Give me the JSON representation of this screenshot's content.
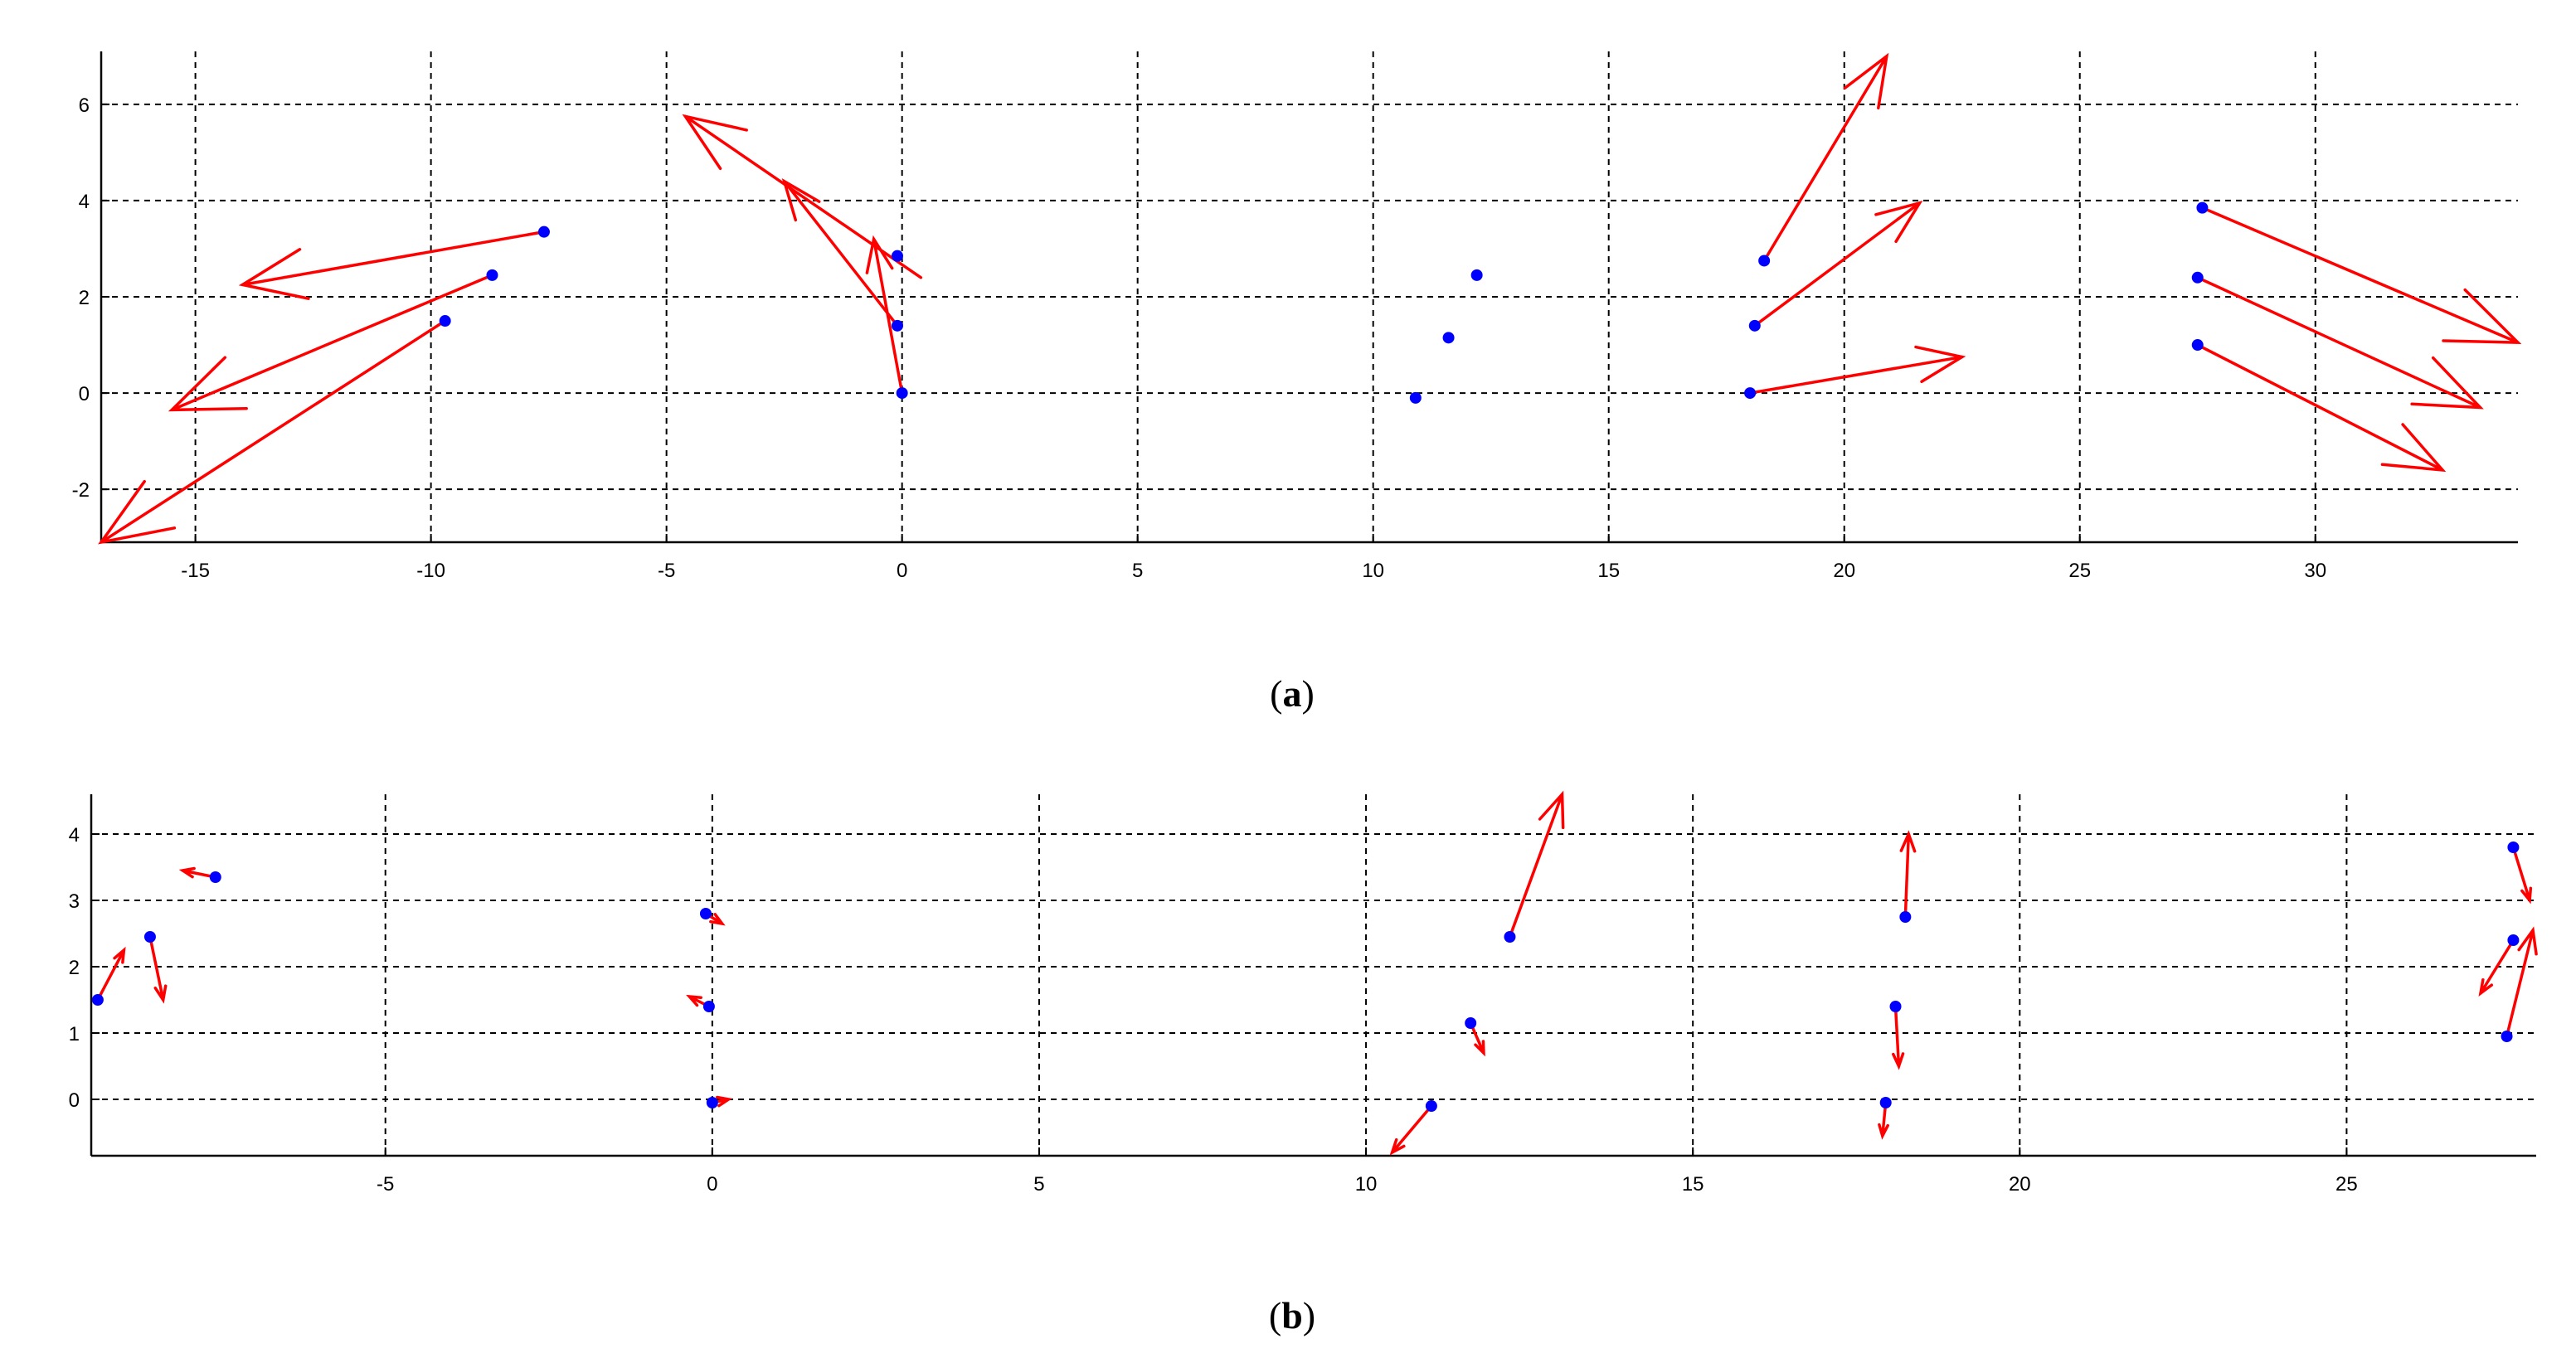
{
  "colors": {
    "arrow": "#ff0000",
    "point": "#0000ff",
    "axis": "#000000",
    "grid": "#000000",
    "background": "#ffffff"
  },
  "chart_data": [
    {
      "type": "scatter",
      "caption": {
        "open": "(",
        "letter": "a",
        "close": ")"
      },
      "title": "",
      "xlabel": "",
      "ylabel": "",
      "xlim": [
        -17,
        34.3
      ],
      "ylim": [
        -3.1,
        7.1
      ],
      "xticks": [
        -15,
        -10,
        -5,
        0,
        5,
        10,
        15,
        20,
        25,
        30
      ],
      "yticks": [
        -2,
        0,
        2,
        4,
        6
      ],
      "grid": true,
      "points": [
        {
          "x": -7.6,
          "y": 3.35
        },
        {
          "x": -8.7,
          "y": 2.45
        },
        {
          "x": -9.7,
          "y": 1.5
        },
        {
          "x": 0.0,
          "y": 0.0
        },
        {
          "x": -0.1,
          "y": 1.4
        },
        {
          "x": -0.1,
          "y": 2.85
        },
        {
          "x": 10.9,
          "y": -0.1
        },
        {
          "x": 11.6,
          "y": 1.15
        },
        {
          "x": 12.2,
          "y": 2.45
        },
        {
          "x": 18.3,
          "y": 2.75
        },
        {
          "x": 18.1,
          "y": 1.4
        },
        {
          "x": 18.0,
          "y": 0.0
        },
        {
          "x": 27.6,
          "y": 3.85
        },
        {
          "x": 27.5,
          "y": 2.4
        },
        {
          "x": 27.5,
          "y": 1.0
        }
      ],
      "arrows": [
        {
          "x0": -7.6,
          "y0": 3.35,
          "x1": -14.0,
          "y1": 2.25
        },
        {
          "x0": -8.7,
          "y0": 2.45,
          "x1": -15.5,
          "y1": -0.35
        },
        {
          "x0": -9.7,
          "y0": 1.5,
          "x1": -17.0,
          "y1": -3.1
        },
        {
          "x0": 0.0,
          "y0": 0.0,
          "x1": -0.6,
          "y1": 3.2
        },
        {
          "x0": -0.1,
          "y0": 1.4,
          "x1": -2.5,
          "y1": 4.4
        },
        {
          "x0": 0.4,
          "y0": 2.4,
          "x1": -4.6,
          "y1": 5.75
        },
        {
          "x0": 18.3,
          "y0": 2.75,
          "x1": 20.9,
          "y1": 7.0
        },
        {
          "x0": 18.1,
          "y0": 1.4,
          "x1": 21.6,
          "y1": 3.95
        },
        {
          "x0": 18.0,
          "y0": 0.0,
          "x1": 22.5,
          "y1": 0.75
        },
        {
          "x0": 27.6,
          "y0": 3.85,
          "x1": 34.3,
          "y1": 1.05
        },
        {
          "x0": 27.5,
          "y0": 2.4,
          "x1": 33.5,
          "y1": -0.3
        },
        {
          "x0": 27.5,
          "y0": 1.0,
          "x1": 32.7,
          "y1": -1.6
        }
      ]
    },
    {
      "type": "scatter",
      "caption": {
        "open": "(",
        "letter": "b",
        "close": ")"
      },
      "title": "",
      "xlabel": "",
      "ylabel": "",
      "xlim": [
        -9.5,
        27.9
      ],
      "ylim": [
        -0.85,
        4.6
      ],
      "xticks": [
        -5,
        0,
        5,
        10,
        15,
        20,
        25
      ],
      "yticks": [
        0,
        1,
        2,
        3,
        4
      ],
      "grid": true,
      "points": [
        {
          "x": -7.6,
          "y": 3.35
        },
        {
          "x": -8.6,
          "y": 2.45
        },
        {
          "x": -9.4,
          "y": 1.5
        },
        {
          "x": 0.0,
          "y": -0.05
        },
        {
          "x": -0.05,
          "y": 1.4
        },
        {
          "x": -0.1,
          "y": 2.8
        },
        {
          "x": 11.0,
          "y": -0.1
        },
        {
          "x": 11.6,
          "y": 1.15
        },
        {
          "x": 12.2,
          "y": 2.45
        },
        {
          "x": 18.25,
          "y": 2.75
        },
        {
          "x": 18.1,
          "y": 1.4
        },
        {
          "x": 17.95,
          "y": -0.05
        },
        {
          "x": 27.55,
          "y": 3.8
        },
        {
          "x": 27.55,
          "y": 2.4
        },
        {
          "x": 27.45,
          "y": 0.95
        }
      ],
      "arrows": [
        {
          "x0": -7.6,
          "y0": 3.35,
          "x1": -8.1,
          "y1": 3.45
        },
        {
          "x0": -8.6,
          "y0": 2.45,
          "x1": -8.4,
          "y1": 1.5
        },
        {
          "x0": -9.4,
          "y0": 1.5,
          "x1": -9.0,
          "y1": 2.25
        },
        {
          "x0": 0.0,
          "y0": -0.05,
          "x1": 0.25,
          "y1": 0.0
        },
        {
          "x0": -0.05,
          "y0": 1.4,
          "x1": -0.35,
          "y1": 1.55
        },
        {
          "x0": -0.1,
          "y0": 2.8,
          "x1": 0.15,
          "y1": 2.65
        },
        {
          "x0": 11.0,
          "y0": -0.1,
          "x1": 10.4,
          "y1": -0.8
        },
        {
          "x0": 11.6,
          "y0": 1.15,
          "x1": 11.8,
          "y1": 0.7
        },
        {
          "x0": 12.2,
          "y0": 2.45,
          "x1": 13.0,
          "y1": 4.6
        },
        {
          "x0": 18.25,
          "y0": 2.75,
          "x1": 18.3,
          "y1": 4.0
        },
        {
          "x0": 18.1,
          "y0": 1.4,
          "x1": 18.15,
          "y1": 0.5
        },
        {
          "x0": 17.95,
          "y0": -0.05,
          "x1": 17.9,
          "y1": -0.55
        },
        {
          "x0": 27.55,
          "y0": 3.8,
          "x1": 27.8,
          "y1": 3.0
        },
        {
          "x0": 27.55,
          "y0": 2.4,
          "x1": 27.05,
          "y1": 1.6
        },
        {
          "x0": 27.45,
          "y0": 0.95,
          "x1": 27.85,
          "y1": 2.55
        }
      ]
    }
  ]
}
